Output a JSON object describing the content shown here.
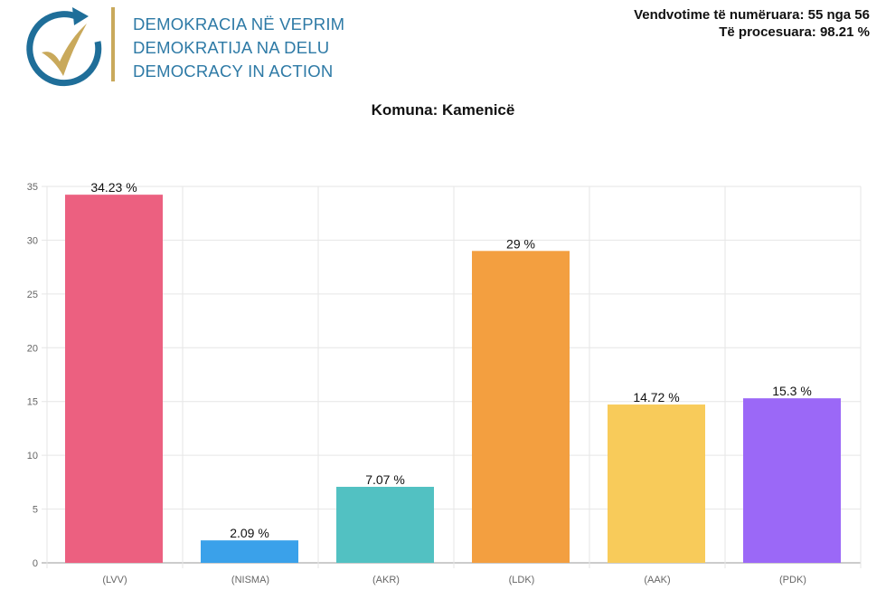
{
  "header": {
    "logo_lines": [
      "DEMOKRACIA NË VEPRIM",
      "DEMOKRATIJA NA DELU",
      "DEMOCRACY IN ACTION"
    ],
    "stats_line1": "Vendvotime të numëruara: 55 nga 56",
    "stats_line2": "Të procesuara: 98.21 %"
  },
  "colors": {
    "logo_blue": "#2e7aa6",
    "logo_gold": "#c9a95b"
  },
  "chart_data": {
    "type": "bar",
    "title": "Komuna: Kamenicë",
    "categories": [
      "(LVV)",
      "(NISMA)",
      "(AKR)",
      "(LDK)",
      "(AAK)",
      "(PDK)"
    ],
    "values": [
      34.23,
      2.09,
      7.07,
      29,
      14.72,
      15.3
    ],
    "data_labels": [
      "34.23 %",
      "2.09 %",
      "7.07 %",
      "29 %",
      "14.72 %",
      "15.3 %"
    ],
    "colors": [
      "#ec6080",
      "#3aa1ea",
      "#52c1c2",
      "#f39f40",
      "#f8cb5a",
      "#9b68f7"
    ],
    "ylim": [
      0,
      35
    ],
    "yticks": [
      0,
      5,
      10,
      15,
      20,
      25,
      30,
      35
    ],
    "grid": true,
    "xlabel": "",
    "ylabel": ""
  }
}
